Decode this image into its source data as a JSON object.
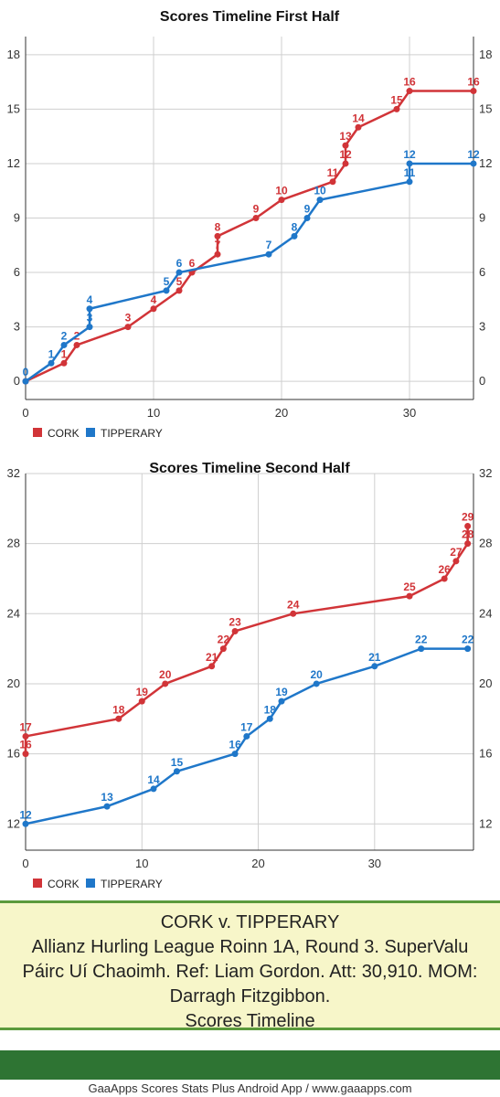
{
  "chart_data": [
    {
      "type": "line",
      "title": "Scores Timeline First Half",
      "xlabel": "",
      "ylabel": "",
      "xlim": [
        0,
        35
      ],
      "ylim": [
        -1,
        19
      ],
      "x_ticks": [
        0,
        10,
        20,
        30
      ],
      "y_ticks": [
        0,
        3,
        6,
        9,
        12,
        15,
        18
      ],
      "grid": true,
      "legend": "bottom-left",
      "series": [
        {
          "name": "CORK",
          "color": "#d13438",
          "points": [
            {
              "x": 0,
              "y": 0,
              "label": ""
            },
            {
              "x": 3,
              "y": 1,
              "label": "1"
            },
            {
              "x": 4,
              "y": 2,
              "label": "2"
            },
            {
              "x": 8,
              "y": 3,
              "label": "3"
            },
            {
              "x": 10,
              "y": 4,
              "label": "4"
            },
            {
              "x": 12,
              "y": 5,
              "label": "5"
            },
            {
              "x": 13,
              "y": 6,
              "label": "6"
            },
            {
              "x": 15,
              "y": 7,
              "label": "7"
            },
            {
              "x": 15,
              "y": 8,
              "label": "8"
            },
            {
              "x": 18,
              "y": 9,
              "label": "9"
            },
            {
              "x": 20,
              "y": 10,
              "label": "10"
            },
            {
              "x": 24,
              "y": 11,
              "label": "11"
            },
            {
              "x": 25,
              "y": 12,
              "label": "12"
            },
            {
              "x": 25,
              "y": 13,
              "label": "13"
            },
            {
              "x": 26,
              "y": 14,
              "label": "14"
            },
            {
              "x": 29,
              "y": 15,
              "label": "15"
            },
            {
              "x": 30,
              "y": 16,
              "label": "16"
            },
            {
              "x": 35,
              "y": 16,
              "label": "16"
            }
          ]
        },
        {
          "name": "TIPPERARY",
          "color": "#1f77c9",
          "points": [
            {
              "x": 0,
              "y": 0,
              "label": "0"
            },
            {
              "x": 2,
              "y": 1,
              "label": "1"
            },
            {
              "x": 3,
              "y": 2,
              "label": "2"
            },
            {
              "x": 5,
              "y": 3,
              "label": "3"
            },
            {
              "x": 5,
              "y": 4,
              "label": "4"
            },
            {
              "x": 11,
              "y": 5,
              "label": "5"
            },
            {
              "x": 12,
              "y": 6,
              "label": "6"
            },
            {
              "x": 19,
              "y": 7,
              "label": "7"
            },
            {
              "x": 21,
              "y": 8,
              "label": "8"
            },
            {
              "x": 22,
              "y": 9,
              "label": "9"
            },
            {
              "x": 23,
              "y": 10,
              "label": "10"
            },
            {
              "x": 30,
              "y": 11,
              "label": "11"
            },
            {
              "x": 30,
              "y": 12,
              "label": "12"
            },
            {
              "x": 35,
              "y": 12,
              "label": "12"
            }
          ]
        }
      ]
    },
    {
      "type": "line",
      "title": "Scores Timeline Second Half",
      "xlabel": "",
      "ylabel": "",
      "xlim": [
        0,
        38.5
      ],
      "ylim": [
        10.5,
        32
      ],
      "x_ticks": [
        0,
        10,
        20,
        30
      ],
      "y_ticks": [
        12,
        16,
        20,
        24,
        28,
        32
      ],
      "grid": true,
      "legend": "bottom-left",
      "series": [
        {
          "name": "CORK",
          "color": "#d13438",
          "points": [
            {
              "x": 0,
              "y": 16,
              "label": "16"
            },
            {
              "x": 0,
              "y": 17,
              "label": "17"
            },
            {
              "x": 8,
              "y": 18,
              "label": "18"
            },
            {
              "x": 10,
              "y": 19,
              "label": "19"
            },
            {
              "x": 12,
              "y": 20,
              "label": "20"
            },
            {
              "x": 16,
              "y": 21,
              "label": "21"
            },
            {
              "x": 17,
              "y": 22,
              "label": "22"
            },
            {
              "x": 18,
              "y": 23,
              "label": "23"
            },
            {
              "x": 23,
              "y": 24,
              "label": "24"
            },
            {
              "x": 33,
              "y": 25,
              "label": "25"
            },
            {
              "x": 36,
              "y": 26,
              "label": "26"
            },
            {
              "x": 37,
              "y": 27,
              "label": "27"
            },
            {
              "x": 38,
              "y": 28,
              "label": "28"
            },
            {
              "x": 38,
              "y": 29,
              "label": "29"
            }
          ]
        },
        {
          "name": "TIPPERARY",
          "color": "#1f77c9",
          "points": [
            {
              "x": 0,
              "y": 12,
              "label": "12"
            },
            {
              "x": 7,
              "y": 13,
              "label": "13"
            },
            {
              "x": 11,
              "y": 14,
              "label": "14"
            },
            {
              "x": 13,
              "y": 15,
              "label": "15"
            },
            {
              "x": 18,
              "y": 16,
              "label": "16"
            },
            {
              "x": 19,
              "y": 17,
              "label": "17"
            },
            {
              "x": 21,
              "y": 18,
              "label": "18"
            },
            {
              "x": 22,
              "y": 19,
              "label": "19"
            },
            {
              "x": 25,
              "y": 20,
              "label": "20"
            },
            {
              "x": 30,
              "y": 21,
              "label": "21"
            },
            {
              "x": 34,
              "y": 22,
              "label": "22"
            },
            {
              "x": 38,
              "y": 22,
              "label": "22"
            }
          ]
        }
      ]
    }
  ],
  "info": {
    "line1": "CORK v. TIPPERARY",
    "line2": "Allianz Hurling League Roinn 1A, Round 3. SuperValu",
    "line3": "Páirc Uí Chaoimh. Ref: Liam Gordon. Att: 30,910. MOM:",
    "line4": "Darragh Fitzgibbon.",
    "line5": "Scores Timeline"
  },
  "footer": "GaaApps Scores Stats Plus Android App / www.gaaapps.com"
}
